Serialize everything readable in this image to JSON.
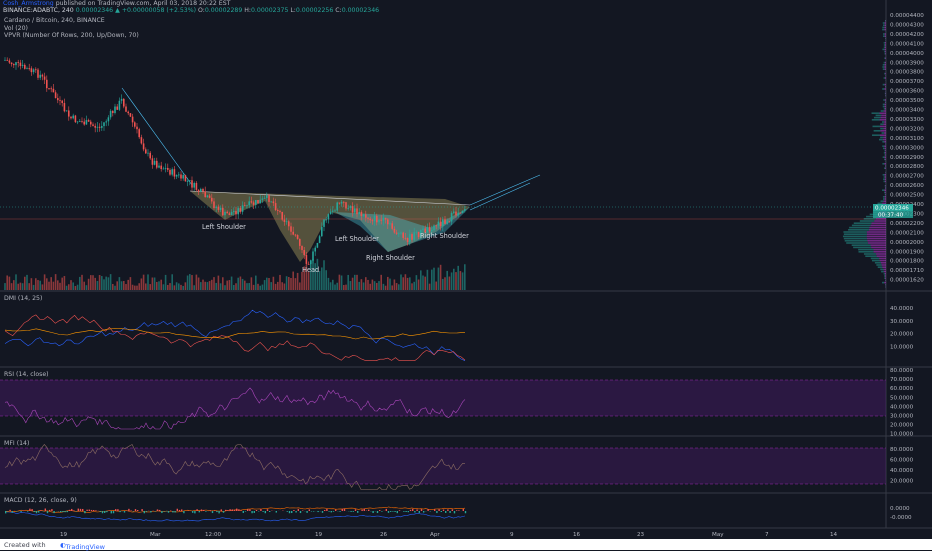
{
  "header": {
    "author": "Cosh_Armstrong",
    "published": "published on TradingView.com, April 03, 2018 20:22 EST",
    "symbol_line": "BINANCE:ADABTC, 240",
    "last": "0.00002346",
    "change": "+0.00000058 (+2.53%)",
    "ohlc": {
      "o_label": "O:",
      "o": "0.00002289",
      "h_label": "H:",
      "h": "0.00002375",
      "l_label": "L:",
      "l": "0.00002256",
      "c_label": "C:",
      "c": "0.00002346"
    }
  },
  "main_pane": {
    "title": "Cardano / Bitcoin, 240, BINANCE",
    "indicators": [
      "Vol (20)",
      "VPVR (Number Of Rows, 200, Up/Down, 70)"
    ],
    "price_ticks": [
      "0.00004400",
      "0.00004300",
      "0.00004200",
      "0.00004100",
      "0.00004000",
      "0.00003900",
      "0.00003800",
      "0.00003700",
      "0.00003600",
      "0.00003500",
      "0.00003400",
      "0.00003300",
      "0.00003200",
      "0.00003100",
      "0.00003000",
      "0.00002900",
      "0.00002800",
      "0.00002700",
      "0.00002600",
      "0.00002500",
      "0.00002400",
      "0.00002300",
      "0.00002200",
      "0.00002100",
      "0.00002000",
      "0.00001900",
      "0.00001800",
      "0.00001710",
      "0.00001620"
    ],
    "price_badges": [
      "0.00002346",
      "00:37:40"
    ],
    "annotations": [
      "Left Shoulder",
      "Head",
      "Left Shoulder",
      "Right Shoulder",
      "Right Shoulder"
    ],
    "colors": {
      "up": "#26a69a",
      "down": "#ef5350",
      "pattern_fill": "#ffeb80",
      "teal_fill": "#4dd0e1"
    }
  },
  "dmi": {
    "label": "DMI (14, 25)",
    "ticks": [
      "40.0000",
      "30.0000",
      "20.0000",
      "10.0000"
    ],
    "colors": {
      "plus": "#2962ff",
      "minus": "#ef5350",
      "adx": "#ff9800"
    }
  },
  "rsi": {
    "label": "RSI (14, close)",
    "ticks": [
      "80.0000",
      "70.0000",
      "60.0000",
      "50.0000",
      "40.0000",
      "30.0000",
      "20.0000",
      "10.0000"
    ],
    "color": "#ab47bc"
  },
  "mfi": {
    "label": "MFI (14)",
    "ticks": [
      "80.0000",
      "60.0000",
      "40.0000",
      "20.0000"
    ],
    "color": "#8d6e63"
  },
  "macd": {
    "label": "MACD (12, 26, close, 9)",
    "ticks": [
      "0.0000",
      "-0.0000"
    ]
  },
  "time_axis": [
    "19",
    "Mar",
    "12:00",
    "12",
    "19",
    "26",
    "Apr",
    "9",
    "16",
    "23",
    "May",
    "7",
    "14"
  ],
  "footer": {
    "created": "Created with",
    "brand": "TradingView"
  },
  "chart_data": {
    "type": "candlestick",
    "title": "Cardano / Bitcoin, 240, BINANCE",
    "x": [
      "19",
      "Mar",
      "12:00",
      "12",
      "19",
      "26",
      "Apr"
    ],
    "close_path_approx": [
      4e-05,
      3.4e-05,
      2.9e-05,
      2.5e-05,
      2.2e-05,
      2.5e-05,
      1.8e-05,
      2.4e-05,
      2.1e-05,
      2e-05,
      2.2e-05,
      2.346e-05
    ],
    "neckline": [
      2.5e-05,
      2.41e-05
    ],
    "ylim": [
      1.62e-05,
      4.4e-05
    ]
  }
}
